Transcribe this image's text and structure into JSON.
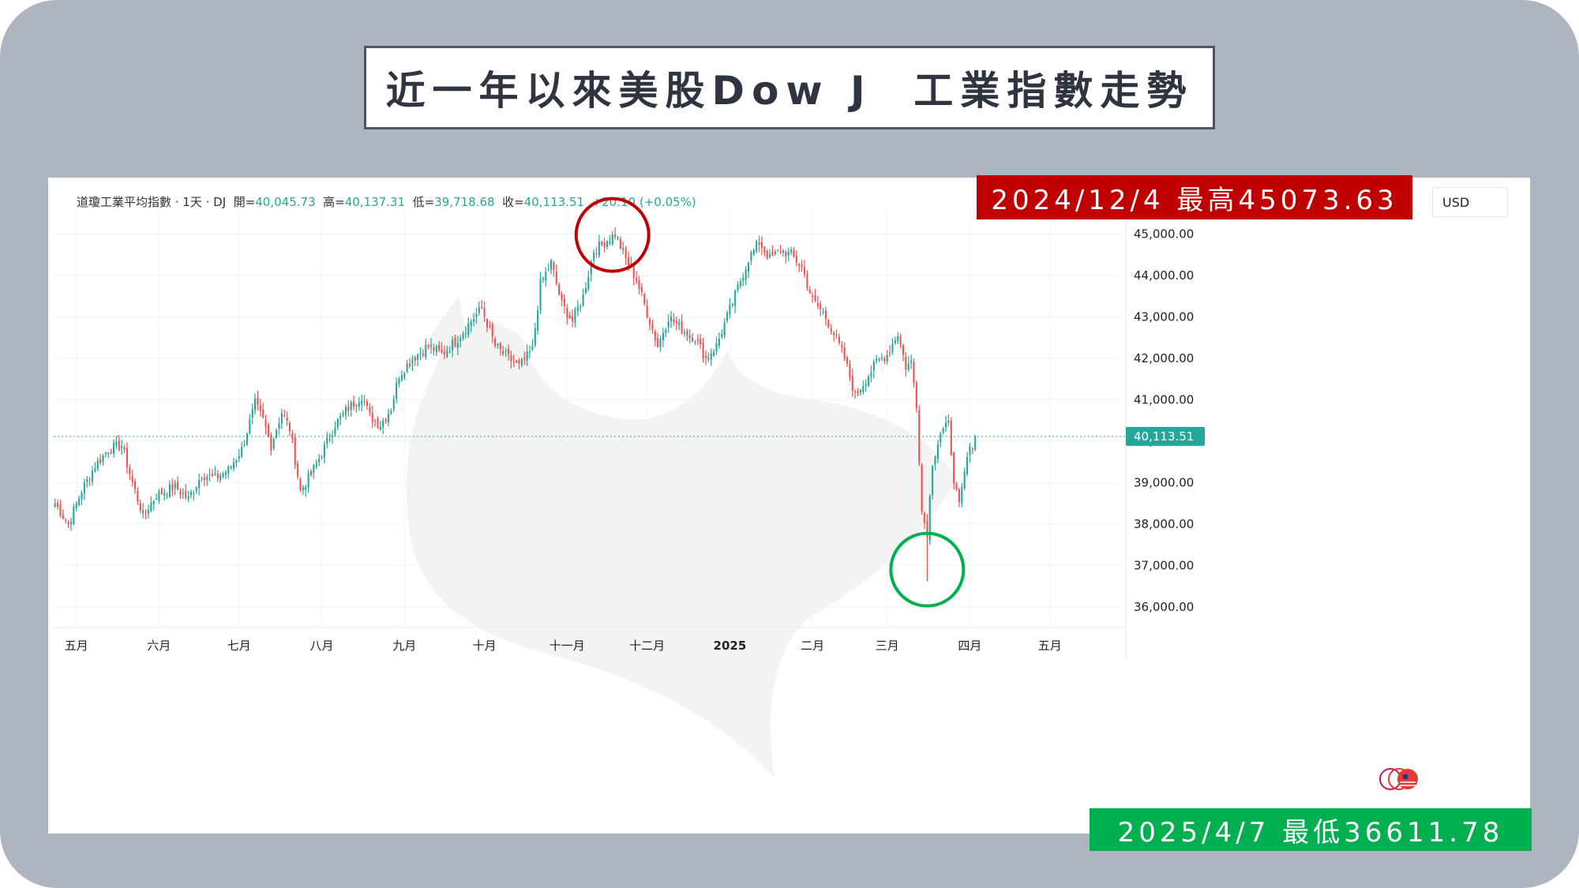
{
  "title": "近一年以來美股Dow J  工業指數走勢",
  "legend": {
    "name": "道瓊工業平均指數 · 1天 · DJ",
    "open_label": "開=",
    "open": "40,045.73",
    "high_label": "高=",
    "high": "40,137.31",
    "low_label": "低=",
    "low": "39,718.68",
    "close_label": "收=",
    "close": "40,113.51",
    "change": "+20.10 (+0.05%)"
  },
  "currency": "USD",
  "high_banner": "2024/12/4 最高45073.63",
  "low_banner": "2025/4/7 最低36611.78",
  "last_price_label": "40,113.51",
  "colors": {
    "up": "#26a69a",
    "down": "#ef5350",
    "high_banner": "#c00000",
    "low_banner": "#00b050",
    "high_circle": "#c00000",
    "low_circle": "#00b050",
    "frame": "#aeb4c0"
  },
  "icons": [
    "us-flag-icon"
  ],
  "chart_data": {
    "type": "candlestick",
    "symbol": "DJ",
    "interval": "1天",
    "ylim": [
      35500,
      45600
    ],
    "y_ticks": [
      45000,
      44000,
      43000,
      42000,
      41000,
      40000,
      39000,
      38000,
      37000,
      36000
    ],
    "y_tick_labels": [
      "45,000.00",
      "44,000.00",
      "43,000.00",
      "42,000.00",
      "41,000.00",
      "40,000.00",
      "39,000.00",
      "38,000.00",
      "37,000.00",
      "36,000.00"
    ],
    "x_ticks": [
      {
        "label": "五月",
        "day": 8
      },
      {
        "label": "六月",
        "day": 39
      },
      {
        "label": "七月",
        "day": 69
      },
      {
        "label": "八月",
        "day": 100
      },
      {
        "label": "九月",
        "day": 131
      },
      {
        "label": "十月",
        "day": 161
      },
      {
        "label": "十一月",
        "day": 192
      },
      {
        "label": "十二月",
        "day": 222
      },
      {
        "label": "2025",
        "day": 253
      },
      {
        "label": "二月",
        "day": 284
      },
      {
        "label": "三月",
        "day": 312
      },
      {
        "label": "四月",
        "day": 343
      },
      {
        "label": "五月",
        "day": 373
      }
    ],
    "x_range_days": [
      -0.5,
      400
    ],
    "last_close": 40113.51,
    "close_path": [
      [
        0,
        38500
      ],
      [
        5,
        38000
      ],
      [
        10,
        38800
      ],
      [
        15,
        39400
      ],
      [
        20,
        39800
      ],
      [
        25,
        39900
      ],
      [
        29,
        39000
      ],
      [
        33,
        38200
      ],
      [
        38,
        38700
      ],
      [
        45,
        38900
      ],
      [
        50,
        38600
      ],
      [
        55,
        39200
      ],
      [
        60,
        39100
      ],
      [
        65,
        39300
      ],
      [
        70,
        39800
      ],
      [
        75,
        40900
      ],
      [
        78,
        40500
      ],
      [
        81,
        39900
      ],
      [
        85,
        40700
      ],
      [
        88,
        40300
      ],
      [
        92,
        38800
      ],
      [
        96,
        39200
      ],
      [
        100,
        39700
      ],
      [
        105,
        40400
      ],
      [
        110,
        40800
      ],
      [
        115,
        41100
      ],
      [
        118,
        40600
      ],
      [
        122,
        40400
      ],
      [
        126,
        40800
      ],
      [
        129,
        41600
      ],
      [
        134,
        42000
      ],
      [
        140,
        42300
      ],
      [
        145,
        42100
      ],
      [
        150,
        42400
      ],
      [
        156,
        42900
      ],
      [
        160,
        43200
      ],
      [
        165,
        42300
      ],
      [
        170,
        42000
      ],
      [
        174,
        41800
      ],
      [
        179,
        42200
      ],
      [
        182,
        43800
      ],
      [
        186,
        44300
      ],
      [
        190,
        43300
      ],
      [
        194,
        42900
      ],
      [
        198,
        43500
      ],
      [
        202,
        44600
      ],
      [
        206,
        44800
      ],
      [
        210,
        45000
      ],
      [
        214,
        44400
      ],
      [
        218,
        43900
      ],
      [
        222,
        43100
      ],
      [
        226,
        42300
      ],
      [
        230,
        43000
      ],
      [
        235,
        42700
      ],
      [
        240,
        42500
      ],
      [
        244,
        42000
      ],
      [
        248,
        42300
      ],
      [
        252,
        43000
      ],
      [
        256,
        43700
      ],
      [
        260,
        44400
      ],
      [
        264,
        44800
      ],
      [
        268,
        44400
      ],
      [
        272,
        44600
      ],
      [
        276,
        44500
      ],
      [
        280,
        44200
      ],
      [
        284,
        43400
      ],
      [
        288,
        43100
      ],
      [
        292,
        42600
      ],
      [
        296,
        42000
      ],
      [
        300,
        41100
      ],
      [
        304,
        41500
      ],
      [
        308,
        41900
      ],
      [
        312,
        42100
      ],
      [
        316,
        42600
      ],
      [
        319,
        41800
      ],
      [
        321,
        41900
      ],
      [
        323,
        40900
      ],
      [
        325,
        38300
      ],
      [
        327,
        37800
      ],
      [
        329,
        39500
      ],
      [
        332,
        40200
      ],
      [
        335,
        40400
      ],
      [
        337,
        39100
      ],
      [
        339,
        38400
      ],
      [
        342,
        39600
      ],
      [
        345,
        40113.51
      ]
    ],
    "extremes": [
      {
        "label": "2024/12/4 最高45073.63",
        "day": 209,
        "value": 45073.63
      },
      {
        "label": "2025/4/7 最低36611.78",
        "day": 327,
        "value": 36611.78
      }
    ]
  }
}
